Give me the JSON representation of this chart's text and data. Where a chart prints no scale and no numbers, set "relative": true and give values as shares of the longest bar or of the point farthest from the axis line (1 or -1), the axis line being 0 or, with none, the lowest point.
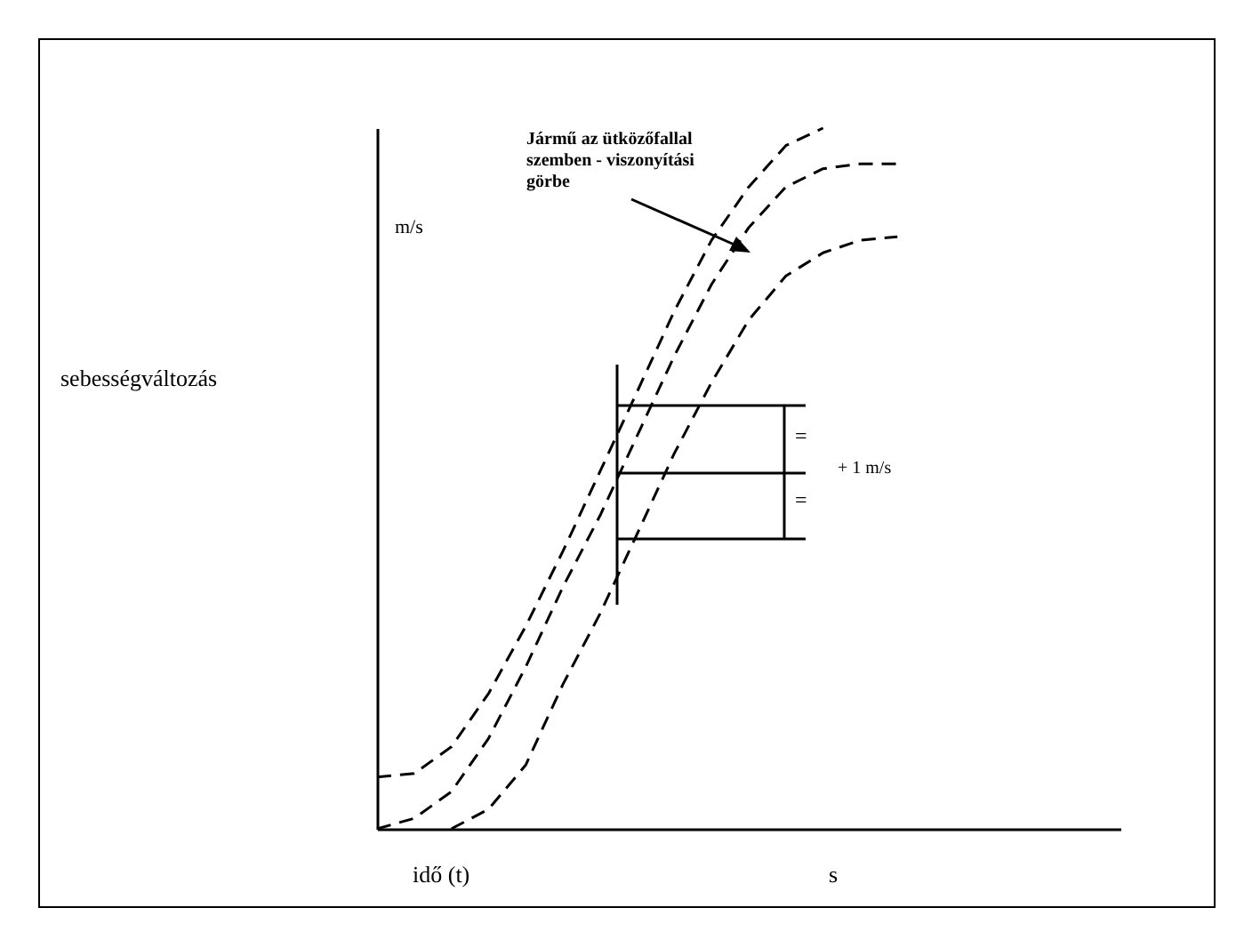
{
  "chart_data": {
    "type": "line",
    "relative": true,
    "line_style": "dashed",
    "marker": "none",
    "legend": false,
    "grid": false,
    "tick_labels": false,
    "xlabel": "idő (t)",
    "annotations": [
      "Jármű az ütközőfallal szemben - viszonyítási görbe",
      "m/s",
      "s",
      "=",
      "=",
      "+ 1 m/s",
      "sebességváltozás"
    ],
    "categories": [
      null,
      null,
      null,
      null,
      null,
      null,
      null,
      null,
      null,
      null,
      null,
      null,
      null,
      null,
      null,
      null,
      null,
      null,
      null,
      null,
      null
    ],
    "series": [
      {
        "color": "#000000",
        "values": [
          0.074,
          0.079,
          0.117,
          0.193,
          0.289,
          0.396,
          0.51,
          0.624,
          0.739,
          0.84,
          0.916,
          0.975,
          1,
          null,
          null,
          null,
          null,
          null,
          null,
          null,
          null
        ]
      },
      {
        "color": "#000000",
        "values": [
          0,
          0.015,
          0.053,
          0.129,
          0.231,
          0.345,
          0.447,
          0.561,
          0.675,
          0.777,
          0.858,
          0.916,
          0.942,
          0.949,
          0.949,
          null,
          null,
          null,
          null,
          null,
          null
        ]
      },
      {
        "color": "#000000",
        "values": [
          null,
          null,
          0,
          0.028,
          0.091,
          0.206,
          0.307,
          0.421,
          0.536,
          0.637,
          0.726,
          0.789,
          0.822,
          0.84,
          0.845,
          null,
          null,
          null,
          null,
          null,
          null
        ]
      }
    ]
  }
}
